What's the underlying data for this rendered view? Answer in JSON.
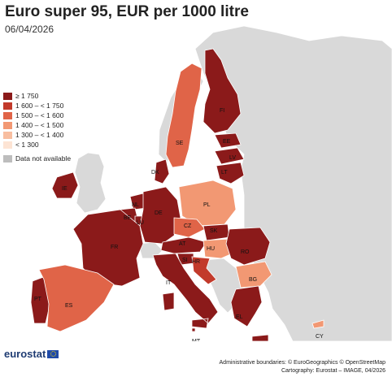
{
  "title": "Euro super 95, EUR per 1000 litre",
  "date": "06/04/2026",
  "legend": [
    {
      "label": "≥ 1 750",
      "color": "#8b1a1a"
    },
    {
      "label": "1 600 – < 1 750",
      "color": "#c23a2b"
    },
    {
      "label": "1 500 – < 1 600",
      "color": "#e06448"
    },
    {
      "label": "1 400 – < 1 500",
      "color": "#f29873"
    },
    {
      "label": "1 300 – < 1 400",
      "color": "#f8bea0"
    },
    {
      "label": "< 1 300",
      "color": "#fde4d4"
    }
  ],
  "legend_na": {
    "label": "Data not available",
    "color": "#bdbdbd"
  },
  "country_labels": [
    "FI",
    "SE",
    "EE",
    "LV",
    "LT",
    "DK",
    "IE",
    "NL",
    "BE",
    "LU",
    "DE",
    "PL",
    "CZ",
    "SK",
    "AT",
    "HU",
    "FR",
    "SI",
    "HR",
    "RO",
    "BG",
    "IT",
    "PT",
    "ES",
    "EL",
    "MT",
    "CY"
  ],
  "country_classes": {
    "FI": "#8b1a1a",
    "SE": "#e06448",
    "EE": "#8b1a1a",
    "LV": "#8b1a1a",
    "LT": "#8b1a1a",
    "DK": "#8b1a1a",
    "IE": "#8b1a1a",
    "NL": "#8b1a1a",
    "BE": "#8b1a1a",
    "LU": "#8b1a1a",
    "DE": "#8b1a1a",
    "PL": "#f29873",
    "CZ": "#e06448",
    "SK": "#8b1a1a",
    "AT": "#8b1a1a",
    "HU": "#f29873",
    "FR": "#8b1a1a",
    "SI": "#8b1a1a",
    "HR": "#c23a2b",
    "RO": "#8b1a1a",
    "BG": "#f29873",
    "IT": "#8b1a1a",
    "PT": "#8b1a1a",
    "ES": "#e06448",
    "EL": "#8b1a1a",
    "MT": "#8b1a1a",
    "CY": "#f29873"
  },
  "logo": "eurostat",
  "credits": [
    "Administrative boundaries: © EuroGeographics © OpenStreetMap",
    "Cartography: Eurostat – IMAGE, 04/2026"
  ]
}
